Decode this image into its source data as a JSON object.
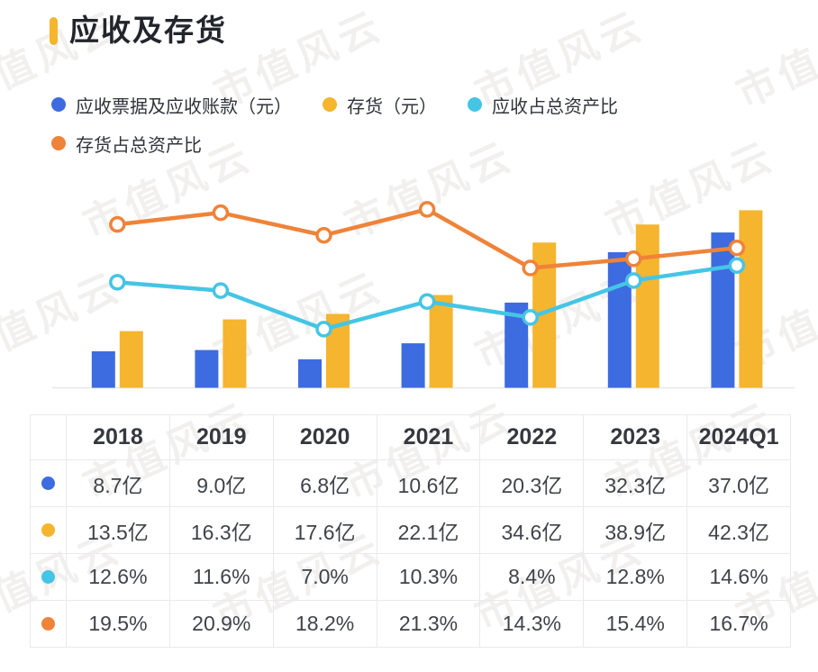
{
  "title": {
    "text": "应收及存货"
  },
  "watermark": {
    "text": "市值风云"
  },
  "colors": {
    "accent_yellow": "#F5B52E",
    "bar_blue": "#3D6BE0",
    "bar_yellow": "#F5B52E",
    "line_cyan": "#45C5E5",
    "line_orange": "#EF8339",
    "title_text": "#22252B",
    "body_text": "#3F434A",
    "grid": "#EAEAEE",
    "baseline": "#E8E8EB"
  },
  "legend": [
    {
      "label": "应收票据及应收账款（元）",
      "color": "#3D6BE0"
    },
    {
      "label": "存货（元）",
      "color": "#F5B52E"
    },
    {
      "label": "应收占总资产比",
      "color": "#45C5E5"
    },
    {
      "label": "存货占总资产比",
      "color": "#EF8339"
    }
  ],
  "chart_data": {
    "type": "bar+line combo",
    "title": "应收及存货",
    "categories": [
      "2018",
      "2019",
      "2020",
      "2021",
      "2022",
      "2023",
      "2024Q1"
    ],
    "series": [
      {
        "name": "应收票据及应收账款（元）",
        "type": "bar",
        "unit": "亿",
        "color": "#3D6BE0",
        "values": [
          8.7,
          9.0,
          6.8,
          10.6,
          20.3,
          32.3,
          37.0
        ]
      },
      {
        "name": "存货（元）",
        "type": "bar",
        "unit": "亿",
        "color": "#F5B52E",
        "values": [
          13.5,
          16.3,
          17.6,
          22.1,
          34.6,
          38.9,
          42.3
        ]
      },
      {
        "name": "应收占总资产比",
        "type": "line",
        "unit": "%",
        "color": "#45C5E5",
        "values": [
          12.6,
          11.6,
          7.0,
          10.3,
          8.4,
          12.8,
          14.6
        ]
      },
      {
        "name": "存货占总资产比",
        "type": "line",
        "unit": "%",
        "color": "#EF8339",
        "values": [
          19.5,
          20.9,
          18.2,
          21.3,
          14.3,
          15.4,
          16.7
        ]
      }
    ],
    "layout_hints": {
      "axes_labels_visible": false,
      "grid": false,
      "baseline_visible": true,
      "legend_position": "top",
      "bar_ylim_yi": [
        0,
        45
      ],
      "line_ylim_pct": [
        0,
        25
      ]
    }
  },
  "table": {
    "header": [
      "2018",
      "2019",
      "2020",
      "2021",
      "2022",
      "2023",
      "2024Q1"
    ],
    "rows": [
      {
        "dot_color": "#3D6BE0",
        "cells": [
          "8.7亿",
          "9.0亿",
          "6.8亿",
          "10.6亿",
          "20.3亿",
          "32.3亿",
          "37.0亿"
        ]
      },
      {
        "dot_color": "#F5B52E",
        "cells": [
          "13.5亿",
          "16.3亿",
          "17.6亿",
          "22.1亿",
          "34.6亿",
          "38.9亿",
          "42.3亿"
        ]
      },
      {
        "dot_color": "#45C5E5",
        "cells": [
          "12.6%",
          "11.6%",
          "7.0%",
          "10.3%",
          "8.4%",
          "12.8%",
          "14.6%"
        ]
      },
      {
        "dot_color": "#EF8339",
        "cells": [
          "19.5%",
          "20.9%",
          "18.2%",
          "21.3%",
          "14.3%",
          "15.4%",
          "16.7%"
        ]
      }
    ]
  }
}
